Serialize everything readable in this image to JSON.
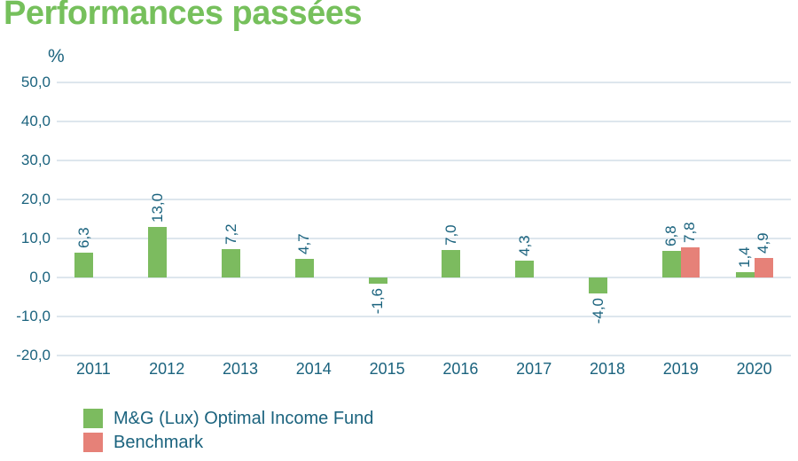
{
  "title": "Performances passées",
  "axis": {
    "unit_label": "%",
    "y_ticks": [
      "50,0",
      "40,0",
      "30,0",
      "20,0",
      "10,0",
      "0,0",
      "-10,0",
      "-20,0"
    ],
    "y_tick_values": [
      50,
      40,
      30,
      20,
      10,
      0,
      -10,
      -20
    ],
    "x_categories": [
      "2011",
      "2012",
      "2013",
      "2014",
      "2015",
      "2016",
      "2017",
      "2018",
      "2019",
      "2020"
    ]
  },
  "chart_data": {
    "type": "bar",
    "title": "Performances passées",
    "xlabel": "",
    "ylabel": "%",
    "ylim": [
      -20,
      50
    ],
    "grid": "horizontal",
    "legend_position": "bottom-left",
    "categories": [
      "2011",
      "2012",
      "2013",
      "2014",
      "2015",
      "2016",
      "2017",
      "2018",
      "2019",
      "2020"
    ],
    "series": [
      {
        "name": "M&G (Lux) Optimal Income Fund",
        "color": "#7CBB5F",
        "values": [
          6.3,
          13.0,
          7.2,
          4.7,
          -1.6,
          7.0,
          4.3,
          -4.0,
          6.8,
          1.4
        ],
        "labels": [
          "6,3",
          "13,0",
          "7,2",
          "4,7",
          "-1,6",
          "7,0",
          "4,3",
          "-4,0",
          "6,8",
          "1,4"
        ]
      },
      {
        "name": "Benchmark",
        "color": "#E68178",
        "values": [
          null,
          null,
          null,
          null,
          null,
          null,
          null,
          null,
          7.8,
          4.9
        ],
        "labels": [
          null,
          null,
          null,
          null,
          null,
          null,
          null,
          null,
          "7,8",
          "4,9"
        ]
      }
    ]
  },
  "colors": {
    "title": "#76C05C",
    "text": "#1B637E",
    "gridline": "#DDE6ED"
  }
}
